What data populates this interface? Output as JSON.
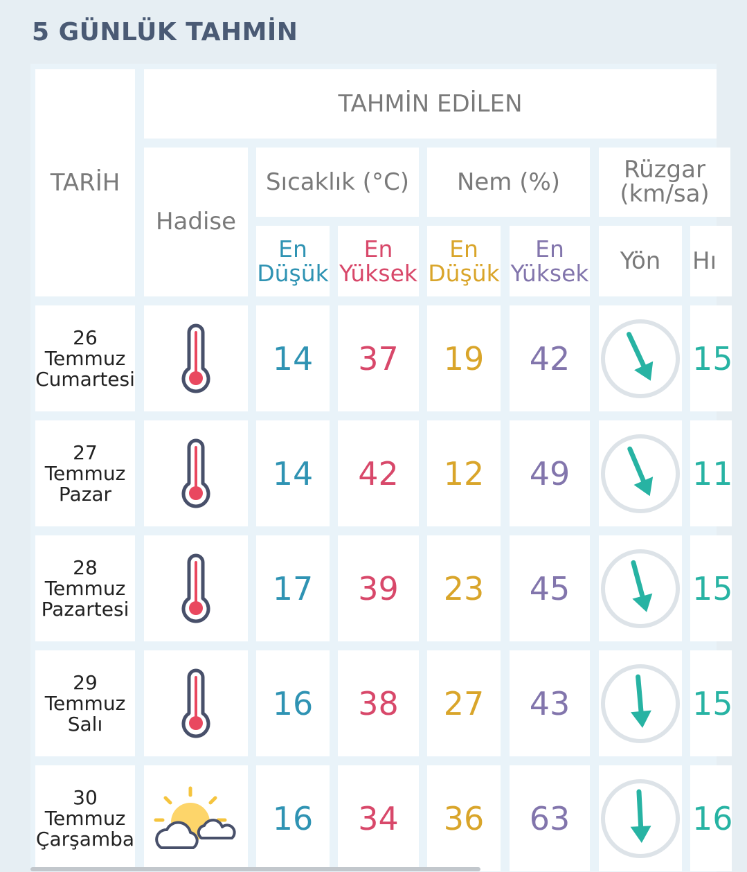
{
  "title": "5 GÜNLÜK TAHMİN",
  "header": {
    "tarih": "TARİH",
    "tahmin_edilen": "TAHMİN EDİLEN",
    "hadise": "Hadise",
    "sicaklik": "Sıcaklık (°C)",
    "nem": "Nem (%)",
    "ruzgar": "Rüzgar (km/sa)",
    "en_dusuk": "En Düşük",
    "en_yuksek": "En Yüksek",
    "yon": "Yön",
    "hiz": "Hı"
  },
  "colors": {
    "min_temp": "#2f93b3",
    "max_temp": "#d8486a",
    "min_humidity": "#d9a52a",
    "max_humidity": "#8275ac",
    "wind": "#27b3a3"
  },
  "rows": [
    {
      "date_day": "26",
      "date_month": "Temmuz",
      "date_weekday": "Cumartesi",
      "icon": "thermometer-icon",
      "t_min": "14",
      "t_max": "37",
      "h_min": "19",
      "h_max": "42",
      "wind_dir_deg": 155,
      "wind_speed": "15"
    },
    {
      "date_day": "27",
      "date_month": "Temmuz",
      "date_weekday": "Pazar",
      "icon": "thermometer-icon",
      "t_min": "14",
      "t_max": "42",
      "h_min": "12",
      "h_max": "49",
      "wind_dir_deg": 157,
      "wind_speed": "11"
    },
    {
      "date_day": "28",
      "date_month": "Temmuz",
      "date_weekday": "Pazartesi",
      "icon": "thermometer-icon",
      "t_min": "17",
      "t_max": "39",
      "h_min": "23",
      "h_max": "45",
      "wind_dir_deg": 165,
      "wind_speed": "15"
    },
    {
      "date_day": "29",
      "date_month": "Temmuz",
      "date_weekday": "Salı",
      "icon": "thermometer-icon",
      "t_min": "16",
      "t_max": "38",
      "h_min": "27",
      "h_max": "43",
      "wind_dir_deg": 175,
      "wind_speed": "15"
    },
    {
      "date_day": "30",
      "date_month": "Temmuz",
      "date_weekday": "Çarşamba",
      "icon": "partly-cloudy-icon",
      "t_min": "16",
      "t_max": "34",
      "h_min": "36",
      "h_max": "63",
      "wind_dir_deg": 177,
      "wind_speed": "16"
    }
  ]
}
